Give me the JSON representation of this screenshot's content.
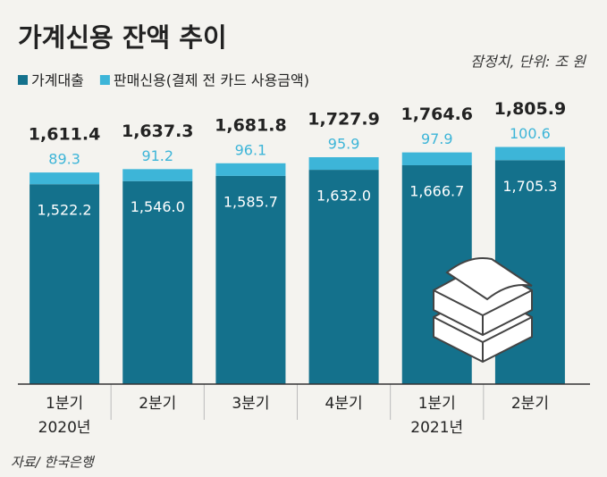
{
  "chart_data": {
    "type": "stacked-bar",
    "title": "가계신용 잔액 추이",
    "subtitle": "잠정치, 단위: 조 원",
    "source": "자료/ 한국은행",
    "categories": [
      "1분기",
      "2분기",
      "3분기",
      "4분기",
      "1분기",
      "2분기"
    ],
    "year_labels": [
      "2020년",
      null,
      null,
      null,
      "2021년",
      null
    ],
    "series": [
      {
        "name": "가계대출",
        "color": "#14718c",
        "values": [
          1522.2,
          1546.0,
          1585.7,
          1632.0,
          1666.7,
          1705.3
        ],
        "value_labels": [
          "1,522.2",
          "1,546.0",
          "1,585.7",
          "1,632.0",
          "1,666.7",
          "1,705.3"
        ]
      },
      {
        "name": "판매신용(결제 전 카드 사용금액)",
        "color": "#3db5d8",
        "values": [
          89.3,
          91.2,
          96.1,
          95.9,
          97.9,
          100.6
        ]
      }
    ],
    "totals": [
      1611.4,
      1637.3,
      1681.8,
      1727.9,
      1764.6,
      1805.9
    ],
    "total_labels": [
      "1,611.4",
      "1,637.3",
      "1,681.8",
      "1,727.9",
      "1,764.6",
      "1,805.9"
    ],
    "ylim": [
      0,
      2000
    ]
  }
}
